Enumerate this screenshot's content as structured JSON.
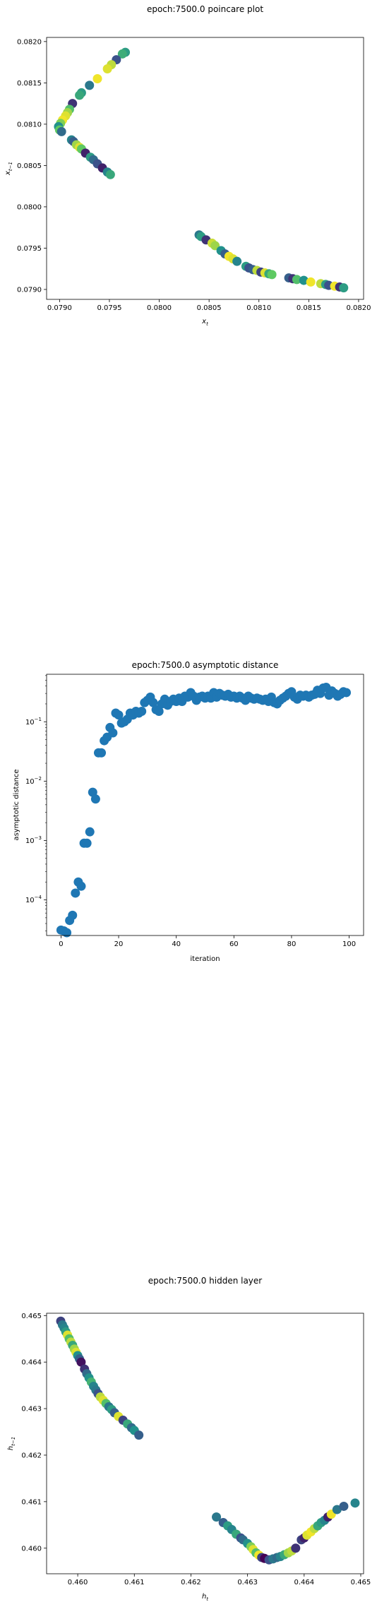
{
  "chart_data": [
    {
      "type": "scatter",
      "title": "epoch:7500.0 poincare plot",
      "xlabel": "x_t",
      "ylabel": "x_{t-1}",
      "xlim": [
        0.07887,
        0.08205
      ],
      "ylim": [
        0.07888,
        0.08205
      ],
      "xticks": [
        "0.0790",
        "0.0795",
        "0.0800",
        "0.0805",
        "0.0810",
        "0.0815",
        "0.0820"
      ],
      "xtick_values": [
        0.079,
        0.0795,
        0.08,
        0.0805,
        0.081,
        0.0815,
        0.082
      ],
      "yticks": [
        "0.0790",
        "0.0795",
        "0.0800",
        "0.0805",
        "0.0810",
        "0.0815",
        "0.0820"
      ],
      "ytick_values": [
        0.079,
        0.0795,
        0.08,
        0.0805,
        0.081,
        0.0815,
        0.082
      ],
      "colormap": [
        "#440154",
        "#3b528b",
        "#21918c",
        "#5ec962",
        "#fde725"
      ],
      "series": [
        {
          "points": [
            [
              0.07966,
              0.08187,
              0.55
            ],
            [
              0.07963,
              0.08185,
              0.62
            ],
            [
              0.07957,
              0.08178,
              0.25
            ],
            [
              0.07952,
              0.08172,
              0.9
            ],
            [
              0.07948,
              0.08167,
              0.95
            ],
            [
              0.07938,
              0.08155,
              0.98
            ],
            [
              0.0793,
              0.08147,
              0.4
            ],
            [
              0.07922,
              0.08138,
              0.55
            ],
            [
              0.0792,
              0.08135,
              0.6
            ],
            [
              0.07913,
              0.08125,
              0.15
            ],
            [
              0.0791,
              0.08118,
              0.7
            ],
            [
              0.07908,
              0.08114,
              0.85
            ],
            [
              0.07906,
              0.0811,
              0.95
            ],
            [
              0.07903,
              0.08105,
              0.98
            ],
            [
              0.07901,
              0.08101,
              0.8
            ],
            [
              0.07899,
              0.08097,
              0.5
            ],
            [
              0.079,
              0.08093,
              0.75
            ],
            [
              0.07902,
              0.08091,
              0.35
            ],
            [
              0.07912,
              0.08081,
              0.45
            ],
            [
              0.07914,
              0.08079,
              0.3
            ],
            [
              0.07917,
              0.08075,
              0.85
            ],
            [
              0.0792,
              0.08072,
              0.95
            ],
            [
              0.07922,
              0.0807,
              0.75
            ],
            [
              0.07926,
              0.08065,
              0.1
            ],
            [
              0.07931,
              0.0806,
              0.55
            ],
            [
              0.07934,
              0.08057,
              0.35
            ],
            [
              0.07938,
              0.08052,
              0.25
            ],
            [
              0.07943,
              0.08047,
              0.1
            ],
            [
              0.07948,
              0.08042,
              0.45
            ],
            [
              0.07951,
              0.08039,
              0.6
            ],
            [
              0.0804,
              0.07966,
              0.4
            ],
            [
              0.08042,
              0.07964,
              0.55
            ],
            [
              0.08047,
              0.0796,
              0.15
            ],
            [
              0.08053,
              0.07956,
              0.92
            ],
            [
              0.08056,
              0.07953,
              0.85
            ],
            [
              0.08062,
              0.07947,
              0.5
            ],
            [
              0.08066,
              0.07943,
              0.3
            ],
            [
              0.0807,
              0.0794,
              0.98
            ],
            [
              0.08074,
              0.07937,
              0.95
            ],
            [
              0.08078,
              0.07934,
              0.45
            ],
            [
              0.08087,
              0.07928,
              0.55
            ],
            [
              0.0809,
              0.07926,
              0.25
            ],
            [
              0.08094,
              0.07924,
              0.3
            ],
            [
              0.08098,
              0.07923,
              0.9
            ],
            [
              0.08102,
              0.07921,
              0.2
            ],
            [
              0.08106,
              0.0792,
              0.95
            ],
            [
              0.0811,
              0.07919,
              0.6
            ],
            [
              0.08113,
              0.07918,
              0.75
            ],
            [
              0.0813,
              0.07914,
              0.3
            ],
            [
              0.08134,
              0.07913,
              0.15
            ],
            [
              0.08138,
              0.07912,
              0.7
            ],
            [
              0.08145,
              0.07911,
              0.5
            ],
            [
              0.08152,
              0.07909,
              0.98
            ],
            [
              0.08162,
              0.07907,
              0.9
            ],
            [
              0.08167,
              0.07906,
              0.55
            ],
            [
              0.0817,
              0.07905,
              0.25
            ],
            [
              0.08176,
              0.07904,
              0.98
            ],
            [
              0.08181,
              0.07903,
              0.15
            ],
            [
              0.08185,
              0.07902,
              0.55
            ]
          ]
        }
      ]
    },
    {
      "type": "scatter",
      "title": "epoch:7500.0 asymptotic distance",
      "xlabel": "iteration",
      "ylabel": "asymptotic distance",
      "yscale": "log",
      "xlim": [
        -5,
        105
      ],
      "ylim_log10": [
        -4.6,
        -0.2
      ],
      "xticks": [
        "0",
        "20",
        "40",
        "60",
        "80",
        "100"
      ],
      "xtick_values": [
        0,
        20,
        40,
        60,
        80,
        100
      ],
      "yticks": [
        "10^-4",
        "10^-3",
        "10^-2",
        "10^-1"
      ],
      "ytick_values": [
        0.0001,
        0.001,
        0.01,
        0.1
      ],
      "color": "#1f77b4",
      "x": [
        0,
        1,
        2,
        3,
        4,
        5,
        6,
        7,
        8,
        9,
        10,
        11,
        12,
        13,
        14,
        15,
        16,
        17,
        18,
        19,
        20,
        21,
        22,
        23,
        24,
        25,
        26,
        27,
        28,
        29,
        30,
        31,
        32,
        33,
        34,
        35,
        36,
        37,
        38,
        39,
        40,
        41,
        42,
        43,
        44,
        45,
        46,
        47,
        48,
        49,
        50,
        51,
        52,
        53,
        54,
        55,
        56,
        57,
        58,
        59,
        60,
        61,
        62,
        63,
        64,
        65,
        66,
        67,
        68,
        69,
        70,
        71,
        72,
        73,
        74,
        75,
        76,
        77,
        78,
        79,
        80,
        81,
        82,
        83,
        84,
        85,
        86,
        87,
        88,
        89,
        90,
        91,
        92,
        93,
        94,
        95,
        96,
        97,
        98,
        99
      ],
      "y": [
        3.1e-05,
        3e-05,
        2.8e-05,
        4.5e-05,
        5.5e-05,
        0.00013,
        0.0002,
        0.00017,
        0.0009,
        0.0009,
        0.0014,
        0.0065,
        0.005,
        0.03,
        0.03,
        0.048,
        0.055,
        0.08,
        0.065,
        0.14,
        0.13,
        0.095,
        0.1,
        0.11,
        0.14,
        0.13,
        0.15,
        0.14,
        0.15,
        0.21,
        0.23,
        0.26,
        0.21,
        0.16,
        0.15,
        0.2,
        0.24,
        0.19,
        0.22,
        0.24,
        0.22,
        0.25,
        0.22,
        0.27,
        0.26,
        0.31,
        0.27,
        0.23,
        0.26,
        0.27,
        0.25,
        0.27,
        0.25,
        0.31,
        0.26,
        0.3,
        0.28,
        0.27,
        0.29,
        0.26,
        0.27,
        0.25,
        0.27,
        0.25,
        0.23,
        0.27,
        0.25,
        0.24,
        0.25,
        0.24,
        0.23,
        0.24,
        0.22,
        0.26,
        0.21,
        0.2,
        0.23,
        0.25,
        0.27,
        0.3,
        0.32,
        0.26,
        0.24,
        0.28,
        0.27,
        0.28,
        0.26,
        0.28,
        0.29,
        0.34,
        0.3,
        0.37,
        0.38,
        0.28,
        0.33,
        0.3,
        0.27,
        0.29,
        0.32,
        0.31
      ]
    },
    {
      "type": "scatter",
      "title": "epoch:7500.0 hidden layer",
      "xlabel": "h_t",
      "ylabel": "h_{t-1}",
      "xlim": [
        0.45945,
        0.46505
      ],
      "ylim": [
        0.45945,
        0.46505
      ],
      "xticks": [
        "0.460",
        "0.461",
        "0.462",
        "0.463",
        "0.464",
        "0.465"
      ],
      "xtick_values": [
        0.46,
        0.461,
        0.462,
        0.463,
        0.464,
        0.465
      ],
      "yticks": [
        "0.460",
        "0.461",
        "0.462",
        "0.463",
        "0.464",
        "0.465"
      ],
      "ytick_values": [
        0.46,
        0.461,
        0.462,
        0.463,
        0.464,
        0.465
      ],
      "colormap": [
        "#440154",
        "#3b528b",
        "#21918c",
        "#5ec962",
        "#fde725"
      ],
      "series": [
        {
          "points": [
            [
              0.4597,
              0.46488,
              0.2
            ],
            [
              0.45973,
              0.4648,
              0.4
            ],
            [
              0.45976,
              0.46473,
              0.45
            ],
            [
              0.45979,
              0.46465,
              0.55
            ],
            [
              0.45982,
              0.46458,
              0.95
            ],
            [
              0.45985,
              0.4645,
              0.7
            ],
            [
              0.45988,
              0.46443,
              0.9
            ],
            [
              0.45991,
              0.46436,
              0.6
            ],
            [
              0.45994,
              0.46428,
              0.85
            ],
            [
              0.45997,
              0.46421,
              0.95
            ],
            [
              0.46,
              0.46414,
              0.5
            ],
            [
              0.46003,
              0.46407,
              0.3
            ],
            [
              0.46006,
              0.464,
              0.05
            ],
            [
              0.46012,
              0.46385,
              0.15
            ],
            [
              0.46016,
              0.46375,
              0.35
            ],
            [
              0.4602,
              0.46366,
              0.5
            ],
            [
              0.46024,
              0.46357,
              0.65
            ],
            [
              0.46028,
              0.46348,
              0.45
            ],
            [
              0.46032,
              0.4634,
              0.4
            ],
            [
              0.46036,
              0.46332,
              0.25
            ],
            [
              0.4604,
              0.46325,
              0.9
            ],
            [
              0.46045,
              0.46318,
              0.95
            ],
            [
              0.4605,
              0.46311,
              0.7
            ],
            [
              0.46055,
              0.46304,
              0.4
            ],
            [
              0.4606,
              0.46298,
              0.55
            ],
            [
              0.46065,
              0.46291,
              0.3
            ],
            [
              0.46072,
              0.46283,
              0.95
            ],
            [
              0.4608,
              0.46275,
              0.2
            ],
            [
              0.46088,
              0.46267,
              0.6
            ],
            [
              0.46095,
              0.46259,
              0.35
            ],
            [
              0.461,
              0.46253,
              0.5
            ],
            [
              0.46108,
              0.46243,
              0.3
            ],
            [
              0.46245,
              0.46067,
              0.4
            ],
            [
              0.46257,
              0.46055,
              0.3
            ],
            [
              0.46265,
              0.46048,
              0.55
            ],
            [
              0.46272,
              0.4604,
              0.45
            ],
            [
              0.4628,
              0.4603,
              0.6
            ],
            [
              0.46288,
              0.46022,
              0.25
            ],
            [
              0.46292,
              0.46018,
              0.35
            ],
            [
              0.463,
              0.4601,
              0.5
            ],
            [
              0.46306,
              0.46003,
              0.8
            ],
            [
              0.4631,
              0.45997,
              0.95
            ],
            [
              0.46315,
              0.4599,
              0.7
            ],
            [
              0.4632,
              0.45985,
              0.98
            ],
            [
              0.46325,
              0.4598,
              0.2
            ],
            [
              0.4633,
              0.45978,
              0.0
            ],
            [
              0.46338,
              0.45975,
              0.25
            ],
            [
              0.46345,
              0.45977,
              0.4
            ],
            [
              0.46352,
              0.4598,
              0.35
            ],
            [
              0.46358,
              0.45982,
              0.45
            ],
            [
              0.46365,
              0.45986,
              0.6
            ],
            [
              0.46372,
              0.4599,
              0.85
            ],
            [
              0.46378,
              0.45994,
              0.9
            ],
            [
              0.46385,
              0.46,
              0.15
            ],
            [
              0.46395,
              0.46018,
              0.2
            ],
            [
              0.464,
              0.46022,
              0.1
            ],
            [
              0.46405,
              0.46028,
              0.95
            ],
            [
              0.46412,
              0.46035,
              0.98
            ],
            [
              0.46418,
              0.46042,
              0.9
            ],
            [
              0.46424,
              0.46048,
              0.6
            ],
            [
              0.4643,
              0.46055,
              0.55
            ],
            [
              0.46436,
              0.4606,
              0.45
            ],
            [
              0.46442,
              0.46067,
              0.1
            ],
            [
              0.46448,
              0.46073,
              0.98
            ],
            [
              0.46458,
              0.46083,
              0.4
            ],
            [
              0.4647,
              0.4609,
              0.3
            ],
            [
              0.4649,
              0.46097,
              0.45
            ]
          ]
        }
      ]
    }
  ]
}
